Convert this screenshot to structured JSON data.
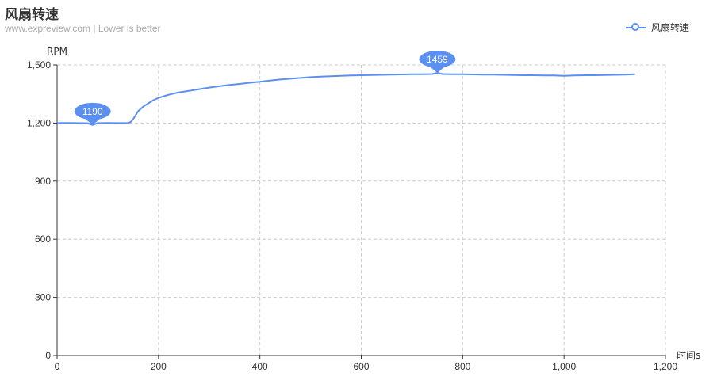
{
  "header": {
    "title": "风扇转速",
    "subtitle": "www.expreview.com  | Lower is better"
  },
  "legend": {
    "label": "风扇转速"
  },
  "colors": {
    "series": "#5b8ff0",
    "grid": "#cccccc",
    "axis": "#333333"
  },
  "chart_data": {
    "type": "line",
    "title": "风扇转速",
    "subtitle": "www.expreview.com  | Lower is better",
    "xlabel": "时间s",
    "ylabel": "RPM",
    "xlim": [
      0,
      1200
    ],
    "ylim": [
      0,
      1500
    ],
    "x_ticks": [
      "0",
      "200",
      "400",
      "600",
      "800",
      "1,000",
      "1,200"
    ],
    "x_tick_values": [
      0,
      200,
      400,
      600,
      800,
      1000,
      1200
    ],
    "y_ticks": [
      "0",
      "300",
      "600",
      "900",
      "1,200",
      "1,500"
    ],
    "y_tick_values": [
      0,
      300,
      600,
      900,
      1200,
      1500
    ],
    "grid": true,
    "legend_position": "top-right",
    "series": [
      {
        "name": "风扇转速",
        "x": [
          0,
          20,
          40,
          60,
          70,
          80,
          100,
          120,
          140,
          145,
          150,
          160,
          170,
          180,
          190,
          200,
          220,
          240,
          260,
          280,
          300,
          320,
          340,
          360,
          380,
          400,
          420,
          440,
          460,
          480,
          500,
          520,
          540,
          560,
          580,
          600,
          620,
          640,
          660,
          680,
          700,
          720,
          740,
          750,
          760,
          780,
          800,
          820,
          840,
          860,
          880,
          900,
          920,
          940,
          960,
          980,
          1000,
          1020,
          1040,
          1060,
          1080,
          1100,
          1120,
          1140
        ],
        "y": [
          1200,
          1201,
          1200,
          1199,
          1190,
          1200,
          1201,
          1200,
          1201,
          1205,
          1220,
          1262,
          1285,
          1302,
          1318,
          1330,
          1346,
          1358,
          1366,
          1375,
          1383,
          1390,
          1397,
          1402,
          1408,
          1413,
          1419,
          1425,
          1429,
          1433,
          1437,
          1440,
          1442,
          1444,
          1446,
          1447,
          1448,
          1449,
          1450,
          1451,
          1452,
          1452,
          1453,
          1459,
          1453,
          1452,
          1452,
          1451,
          1450,
          1450,
          1449,
          1448,
          1447,
          1447,
          1446,
          1446,
          1444,
          1446,
          1447,
          1447,
          1448,
          1449,
          1450,
          1452
        ]
      }
    ],
    "annotations": [
      {
        "label": "1190",
        "x": 70,
        "y": 1190
      },
      {
        "label": "1459",
        "x": 750,
        "y": 1459
      }
    ]
  }
}
